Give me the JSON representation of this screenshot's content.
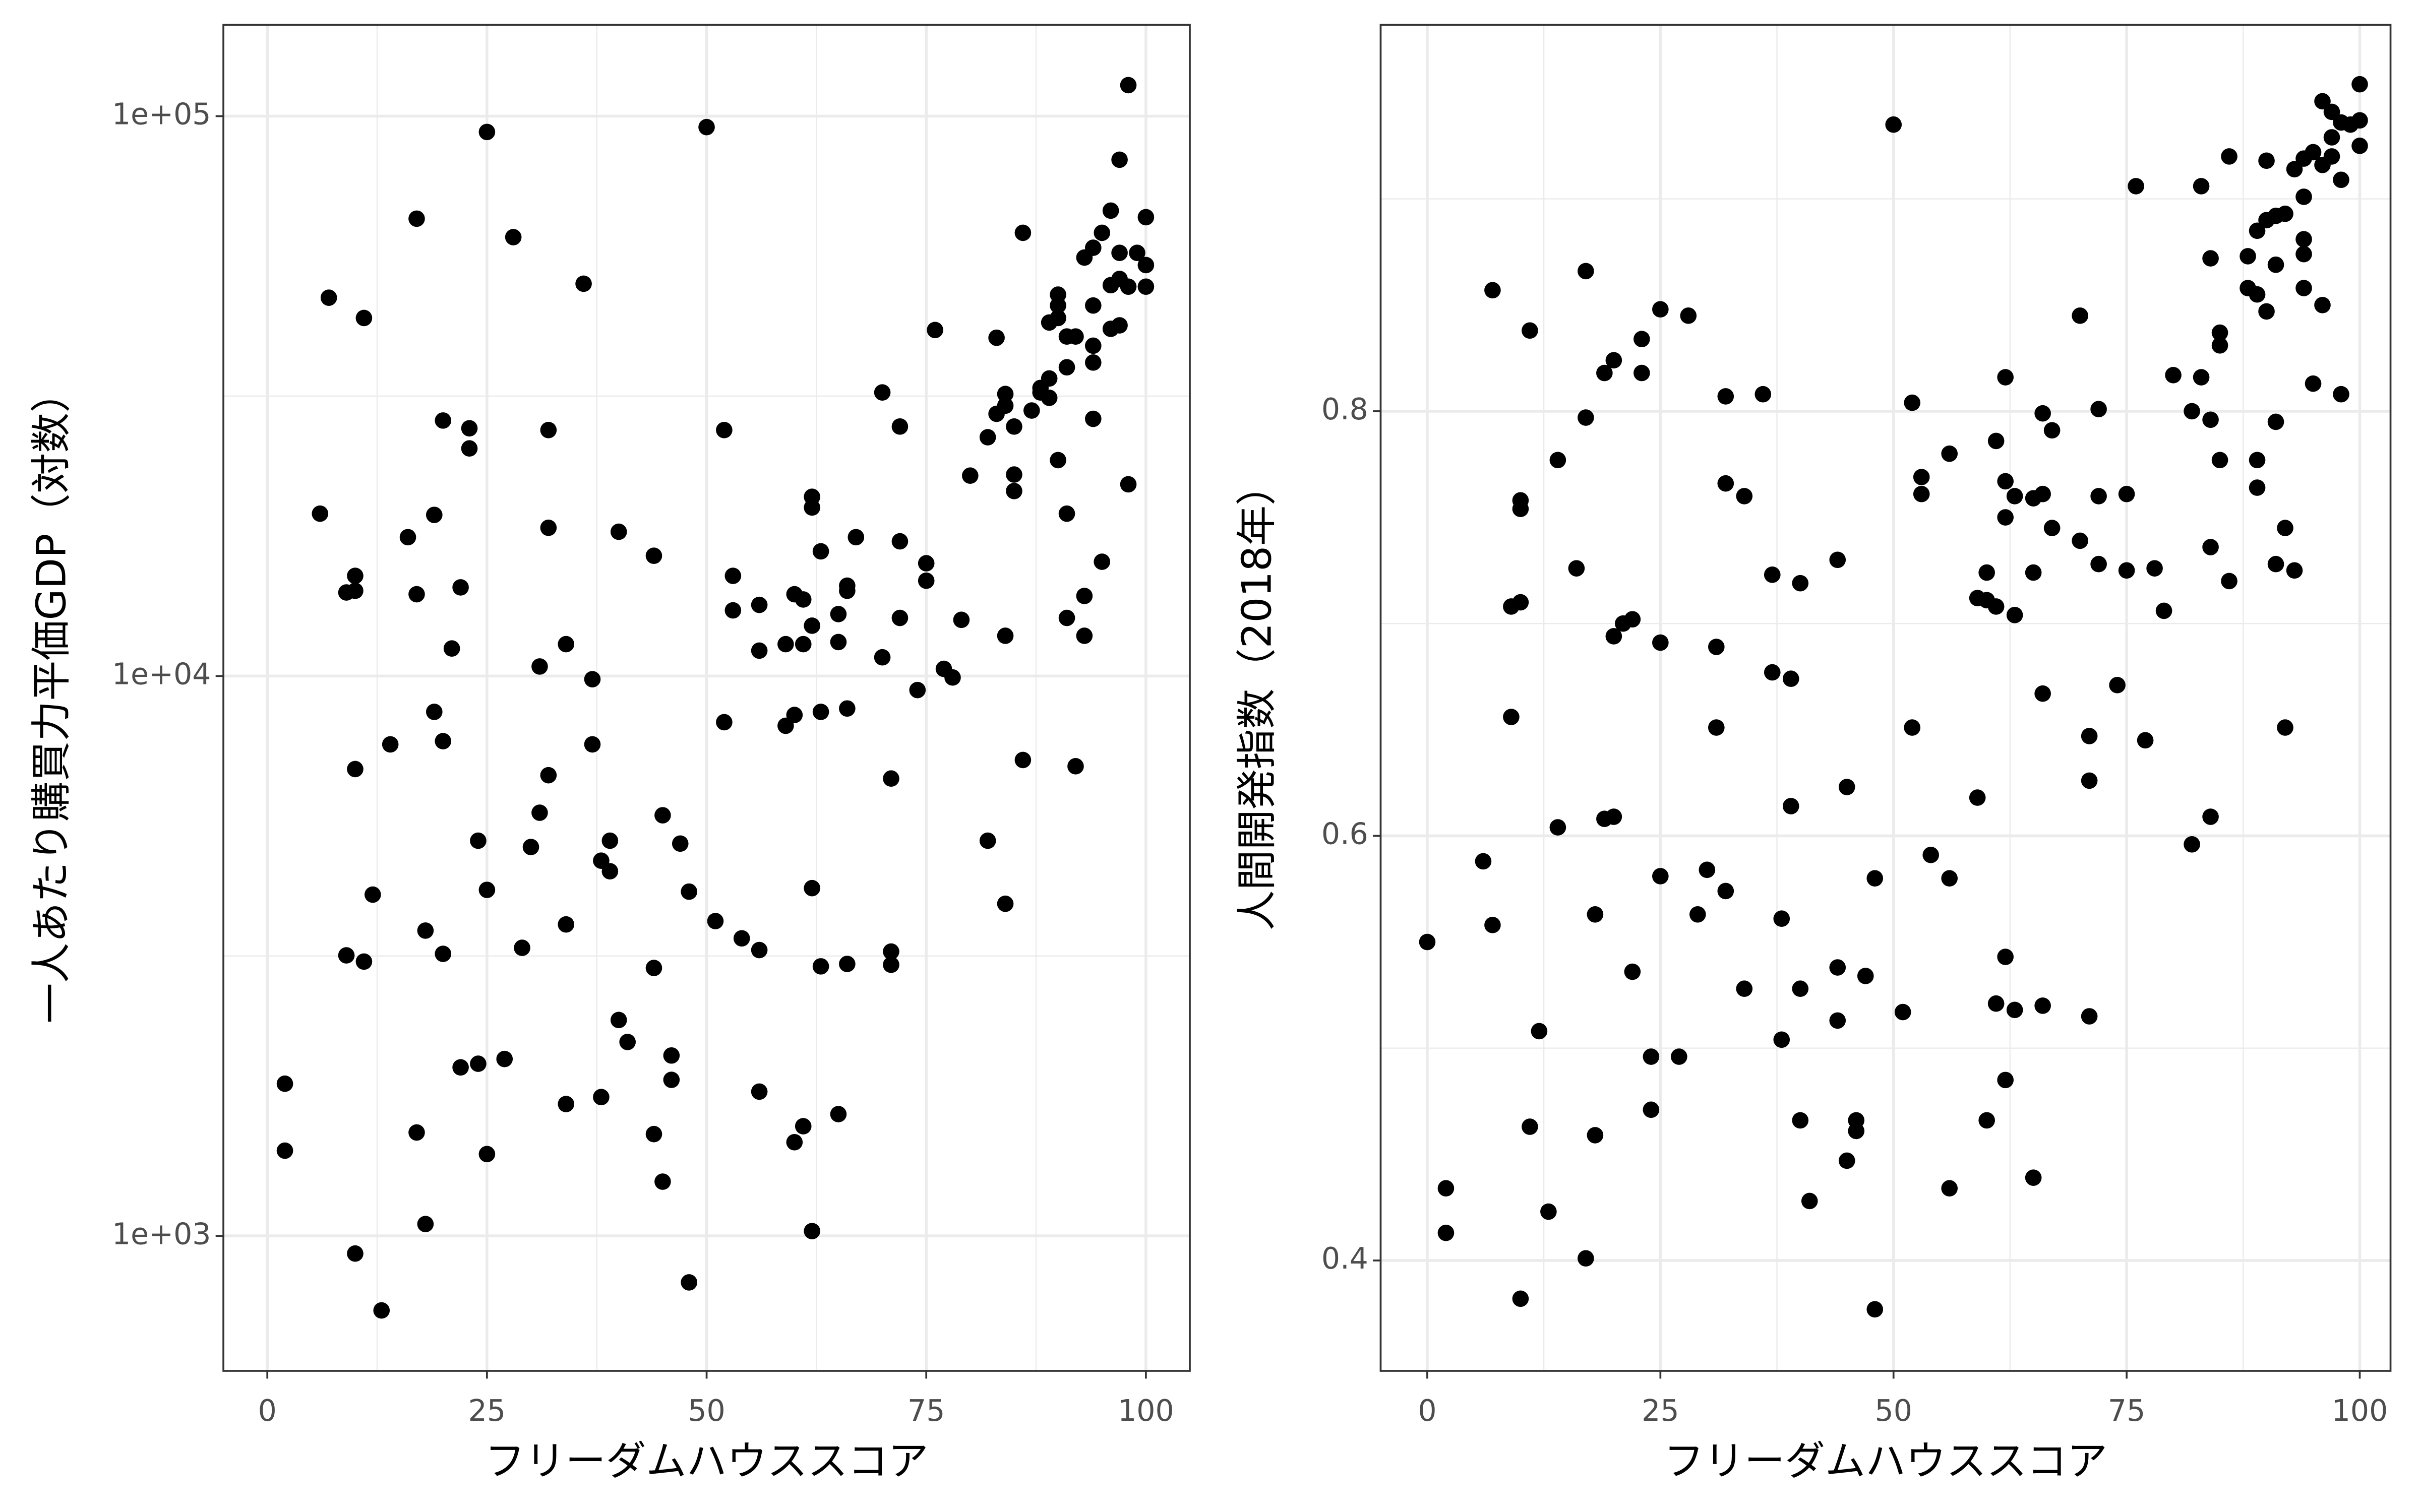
{
  "chart_data": [
    {
      "type": "scatter",
      "xlabel": "フリーダムハウススコア",
      "ylabel": "一人あたり購買力平価GDP（対数）",
      "color": "#000000",
      "log_y": true,
      "grid": true,
      "xlim": [
        -5,
        105
      ],
      "xticks": [
        0,
        25,
        50,
        75,
        100
      ],
      "minor_xticks": [
        12.5,
        37.5,
        62.5,
        87.5
      ],
      "ylim": [
        574,
        145600
      ],
      "yticks": [
        {
          "value": 1000,
          "label": "1e+03"
        },
        {
          "value": 10000,
          "label": "1e+04"
        },
        {
          "value": 100000,
          "label": "1e+05"
        }
      ],
      "minor_yticks": [
        3162.28,
        31622.8
      ],
      "x": [
        2,
        2,
        6,
        7,
        9,
        10,
        10,
        9,
        10,
        11,
        11,
        10,
        12,
        13,
        14,
        16,
        17,
        17,
        17,
        18,
        18,
        19,
        19,
        20,
        20,
        20,
        21,
        22,
        22,
        23,
        23,
        24,
        24,
        25,
        25,
        25,
        27,
        28,
        29,
        30,
        31,
        31,
        32,
        32,
        32,
        34,
        34,
        34,
        36,
        37,
        37,
        38,
        38,
        39,
        39,
        40,
        40,
        41,
        44,
        44,
        44,
        45,
        45,
        46,
        46,
        47,
        48,
        48,
        50,
        51,
        52,
        52,
        53,
        53,
        54,
        56,
        56,
        56,
        56,
        59,
        59,
        60,
        60,
        60,
        61,
        61,
        61,
        62,
        62,
        62,
        62,
        62,
        63,
        63,
        63,
        65,
        65,
        65,
        66,
        66,
        66,
        66,
        67,
        70,
        70,
        71,
        71,
        71,
        72,
        72,
        72,
        74,
        75,
        75,
        76,
        77,
        78,
        79,
        80,
        82,
        82,
        83,
        83,
        84,
        84,
        84,
        84,
        85,
        85,
        85,
        86,
        86,
        87,
        88,
        88,
        89,
        89,
        89,
        90,
        90,
        90,
        90,
        91,
        91,
        91,
        91,
        92,
        92,
        93,
        93,
        93,
        94,
        94,
        94,
        94,
        94,
        95,
        95,
        96,
        96,
        96,
        97,
        97,
        97,
        97,
        98,
        98,
        98,
        99,
        100,
        100,
        100
      ],
      "values": [
        1870,
        1420,
        19500,
        47400,
        14100,
        15100,
        14200,
        3170,
        930,
        3090,
        43600,
        6820,
        4070,
        736,
        7550,
        17700,
        65600,
        14000,
        1530,
        3510,
        1050,
        19400,
        8630,
        28600,
        7650,
        3190,
        11200,
        14400,
        2000,
        27700,
        25500,
        5080,
        2030,
        93700,
        4150,
        1400,
        2070,
        60800,
        3270,
        4950,
        10400,
        5700,
        27500,
        18400,
        6650,
        11400,
        3600,
        1720,
        50200,
        9870,
        7550,
        4680,
        1770,
        5080,
        4480,
        18100,
        2430,
        2220,
        16400,
        3010,
        1520,
        5640,
        1250,
        2100,
        1900,
        5020,
        4120,
        826,
        95600,
        3650,
        8270,
        27500,
        15100,
        13100,
        3400,
        13400,
        11100,
        3240,
        1810,
        11400,
        8150,
        14000,
        8520,
        1470,
        13700,
        11400,
        1570,
        12300,
        20900,
        20000,
        4180,
        1020,
        16700,
        8630,
        3030,
        12900,
        11500,
        1650,
        14500,
        14200,
        8750,
        3060,
        17700,
        32100,
        10800,
        6560,
        3220,
        3050,
        17400,
        12700,
        27900,
        9440,
        15900,
        14800,
        41500,
        10300,
        9940,
        12600,
        22800,
        5080,
        26700,
        40200,
        29400,
        11800,
        3920,
        31900,
        30400,
        27900,
        22900,
        21400,
        61900,
        7080,
        29800,
        32100,
        32700,
        42800,
        34000,
        31400,
        48000,
        45900,
        24300,
        43600,
        40400,
        35600,
        19500,
        12700,
        40400,
        6900,
        55900,
        13900,
        11800,
        58200,
        45900,
        38900,
        36300,
        28800,
        61900,
        16000,
        67800,
        49900,
        41700,
        83600,
        57000,
        51200,
        42300,
        113600,
        49600,
        22000,
        57000,
        66000,
        54200,
        49600
      ]
    },
    {
      "type": "scatter",
      "xlabel": "フリーダムハウススコア",
      "ylabel": "人間開発指数（2018年）",
      "color": "#000000",
      "log_y": false,
      "grid": true,
      "xlim": [
        -5,
        103.3
      ],
      "xticks": [
        0,
        25,
        50,
        75,
        100
      ],
      "minor_xticks": [
        12.5,
        37.5,
        62.5,
        87.5
      ],
      "ylim": [
        0.348,
        0.982
      ],
      "yticks": [
        0.4,
        0.6,
        0.8
      ],
      "minor_yticks": [
        0.5,
        0.7,
        0.9
      ],
      "x": [
        0,
        2,
        2,
        6,
        7,
        7,
        9,
        9,
        10,
        10,
        10,
        10,
        11,
        11,
        12,
        13,
        14,
        14,
        16,
        17,
        17,
        17,
        18,
        18,
        19,
        19,
        20,
        20,
        20,
        21,
        22,
        22,
        23,
        23,
        24,
        24,
        25,
        25,
        25,
        27,
        28,
        29,
        30,
        31,
        31,
        32,
        32,
        32,
        34,
        34,
        36,
        37,
        37,
        38,
        38,
        39,
        39,
        40,
        40,
        40,
        41,
        44,
        44,
        44,
        45,
        45,
        46,
        46,
        47,
        48,
        48,
        50,
        51,
        52,
        52,
        53,
        53,
        54,
        56,
        56,
        56,
        59,
        59,
        60,
        60,
        60,
        61,
        61,
        61,
        62,
        62,
        62,
        62,
        62,
        63,
        63,
        63,
        65,
        65,
        65,
        66,
        66,
        66,
        66,
        67,
        67,
        70,
        70,
        71,
        71,
        71,
        72,
        72,
        72,
        74,
        75,
        75,
        76,
        77,
        78,
        79,
        80,
        82,
        82,
        83,
        83,
        84,
        84,
        84,
        84,
        85,
        85,
        85,
        86,
        86,
        88,
        88,
        89,
        89,
        89,
        89,
        90,
        90,
        90,
        91,
        91,
        91,
        91,
        92,
        92,
        92,
        93,
        93,
        94,
        94,
        94,
        94,
        94,
        95,
        95,
        96,
        96,
        96,
        97,
        97,
        97,
        98,
        98,
        98,
        99,
        100,
        100,
        100
      ],
      "values": [
        0.55,
        0.434,
        0.413,
        0.588,
        0.857,
        0.558,
        0.656,
        0.708,
        0.71,
        0.758,
        0.754,
        0.382,
        0.838,
        0.463,
        0.508,
        0.423,
        0.777,
        0.604,
        0.726,
        0.866,
        0.797,
        0.401,
        0.563,
        0.459,
        0.818,
        0.608,
        0.824,
        0.694,
        0.609,
        0.7,
        0.702,
        0.536,
        0.834,
        0.818,
        0.496,
        0.471,
        0.848,
        0.691,
        0.581,
        0.496,
        0.845,
        0.563,
        0.584,
        0.689,
        0.651,
        0.807,
        0.766,
        0.574,
        0.76,
        0.528,
        0.808,
        0.723,
        0.677,
        0.561,
        0.504,
        0.674,
        0.614,
        0.719,
        0.528,
        0.466,
        0.428,
        0.73,
        0.538,
        0.513,
        0.623,
        0.447,
        0.466,
        0.461,
        0.534,
        0.58,
        0.377,
        0.935,
        0.517,
        0.804,
        0.651,
        0.769,
        0.761,
        0.591,
        0.78,
        0.58,
        0.434,
        0.618,
        0.712,
        0.724,
        0.711,
        0.466,
        0.708,
        0.786,
        0.521,
        0.816,
        0.767,
        0.75,
        0.543,
        0.485,
        0.76,
        0.704,
        0.518,
        0.759,
        0.724,
        0.439,
        0.799,
        0.761,
        0.667,
        0.52,
        0.791,
        0.745,
        0.845,
        0.739,
        0.647,
        0.626,
        0.515,
        0.801,
        0.76,
        0.728,
        0.671,
        0.725,
        0.761,
        0.906,
        0.645,
        0.726,
        0.706,
        0.817,
        0.8,
        0.596,
        0.906,
        0.816,
        0.872,
        0.796,
        0.736,
        0.609,
        0.837,
        0.831,
        0.777,
        0.92,
        0.72,
        0.873,
        0.858,
        0.855,
        0.885,
        0.777,
        0.764,
        0.918,
        0.89,
        0.847,
        0.892,
        0.869,
        0.795,
        0.728,
        0.893,
        0.745,
        0.651,
        0.914,
        0.725,
        0.919,
        0.901,
        0.881,
        0.874,
        0.858,
        0.922,
        0.813,
        0.946,
        0.916,
        0.85,
        0.941,
        0.929,
        0.92,
        0.936,
        0.909,
        0.808,
        0.935,
        0.954,
        0.925,
        0.937
      ]
    }
  ]
}
